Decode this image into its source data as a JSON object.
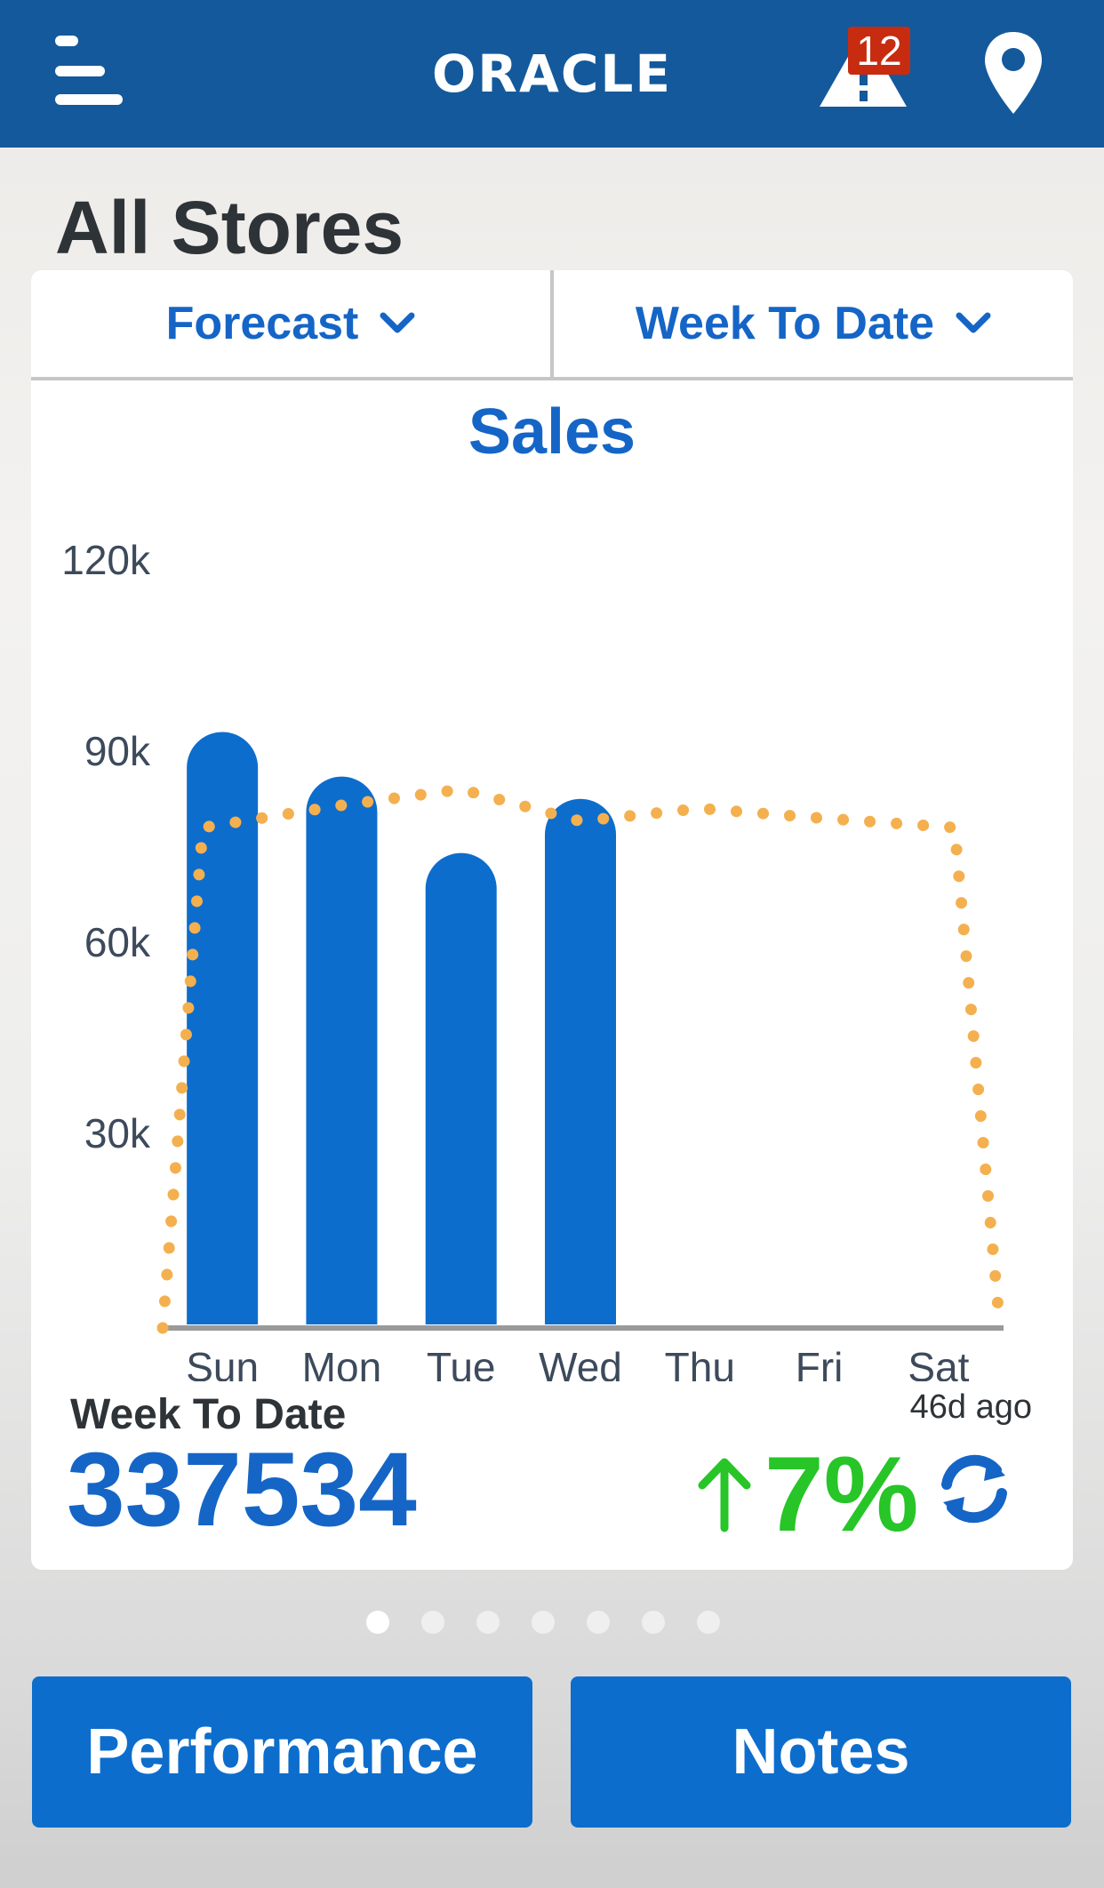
{
  "header": {
    "logo_text": "ORACLE",
    "alerts_count": "12",
    "bar_color": "#14599c"
  },
  "page": {
    "title": "All Stores"
  },
  "card": {
    "selector_left": "Forecast",
    "selector_right": "Week To Date",
    "summary_label": "Week To Date",
    "summary_value": "337534",
    "updated": "46d ago",
    "change": "7%",
    "change_direction": "up",
    "change_color": "#27c527"
  },
  "chart_data": {
    "type": "bar",
    "title": "Sales",
    "categories": [
      "Sun",
      "Mon",
      "Tue",
      "Wed",
      "Thu",
      "Fri",
      "Sat"
    ],
    "y_tick_labels": [
      "120k",
      "90k",
      "60k",
      "30k"
    ],
    "ylim": [
      0,
      120000
    ],
    "series": [
      {
        "values": [
          93000,
          86000,
          74000,
          82500,
          null,
          null,
          null
        ],
        "style": "bar",
        "color": "#0d6dcc"
      },
      {
        "values": [
          78000,
          81500,
          84000,
          79000,
          81000,
          79500,
          78000
        ],
        "style": "dotted-line",
        "color": "#f4b04f"
      }
    ]
  },
  "pager": {
    "count": 7,
    "active": 0
  },
  "buttons": {
    "performance": "Performance",
    "notes": "Notes"
  },
  "icons": {
    "menu": "hamburger-menu-icon",
    "alerts": "warning-road-icon",
    "location": "location-pin-icon",
    "refresh": "refresh-icon",
    "chevron": "chevron-down-icon",
    "arrow": "arrow-up-icon"
  }
}
